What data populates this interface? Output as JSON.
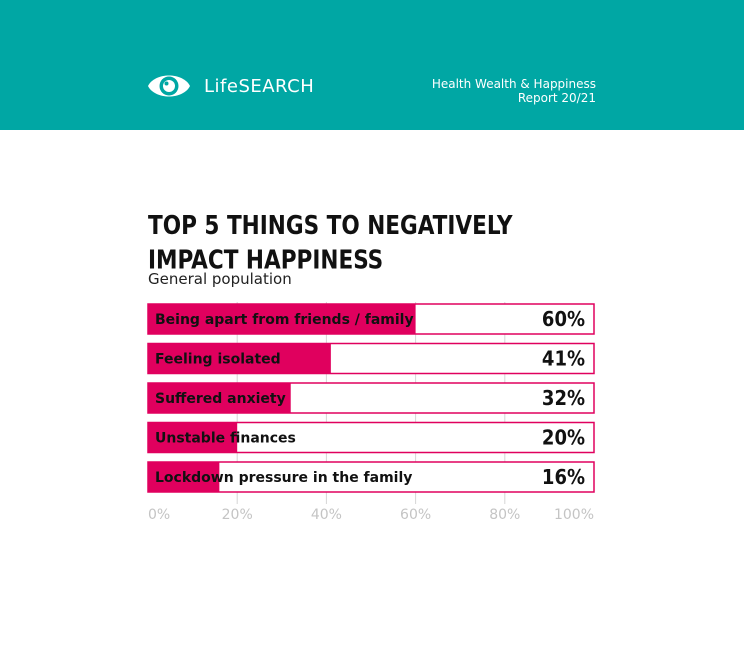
{
  "header": {
    "brand": "LifeSEARCH",
    "report_line1": "Health Wealth & Happiness",
    "report_line2": "Report 20/21",
    "background_color": "#00a7a4"
  },
  "chart_data": {
    "type": "bar",
    "orientation": "horizontal",
    "title": "TOP 5 THINGS TO NEGATIVELY IMPACT HAPPINESS",
    "subtitle": "General population",
    "categories": [
      "Being apart from friends / family",
      "Feeling isolated",
      "Suffered anxiety",
      "Unstable finances",
      "Lockdown pressure in the family"
    ],
    "values": [
      60,
      41,
      32,
      20,
      16
    ],
    "value_labels": [
      "60%",
      "41%",
      "32%",
      "20%",
      "16%"
    ],
    "xlim": [
      0,
      100
    ],
    "x_ticks": [
      "0%",
      "20%",
      "40%",
      "60%",
      "80%",
      "100%"
    ],
    "grid": true,
    "bar_color": "#e0005e"
  }
}
